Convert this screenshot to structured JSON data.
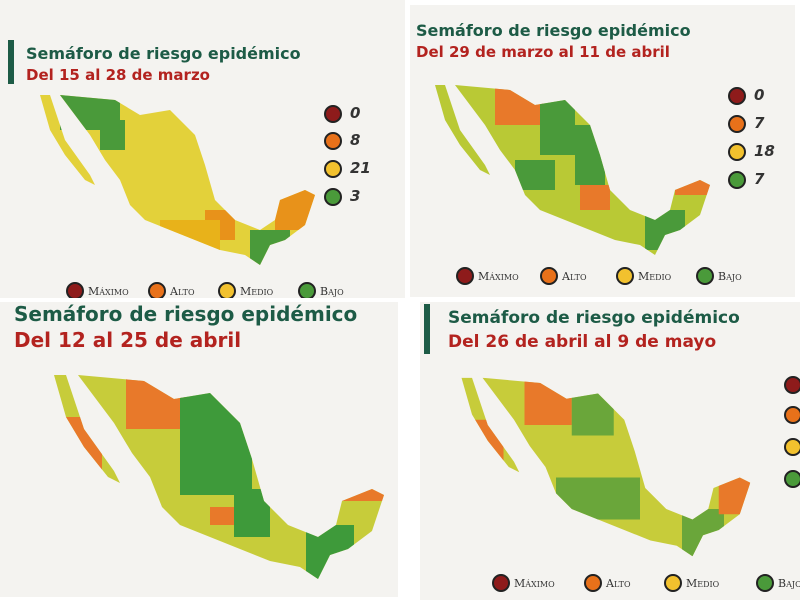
{
  "panels": [
    {
      "title": "Semáforo de riesgo epidémico",
      "subtitle": "Del 15 al 28 de marzo",
      "counts": [
        0,
        8,
        21,
        3
      ],
      "legend": [
        "Máximo",
        "Alto",
        "Medio",
        "Bajo"
      ]
    },
    {
      "title": "Semáforo de riesgo epidémico",
      "subtitle": "Del 29 de marzo al 11 de abril",
      "counts": [
        0,
        7,
        18,
        7
      ],
      "legend": [
        "Máximo",
        "Alto",
        "Medio",
        "Bajo"
      ]
    },
    {
      "title": "Semáforo de riesgo epidémico",
      "subtitle": "Del 12 al 25 de abril"
    },
    {
      "title": "Semáforo de riesgo epidémico",
      "subtitle": "Del 26 de abril al 9 de mayo",
      "legend": [
        "Máximo",
        "Alto",
        "Medio",
        "Bajo"
      ]
    }
  ]
}
